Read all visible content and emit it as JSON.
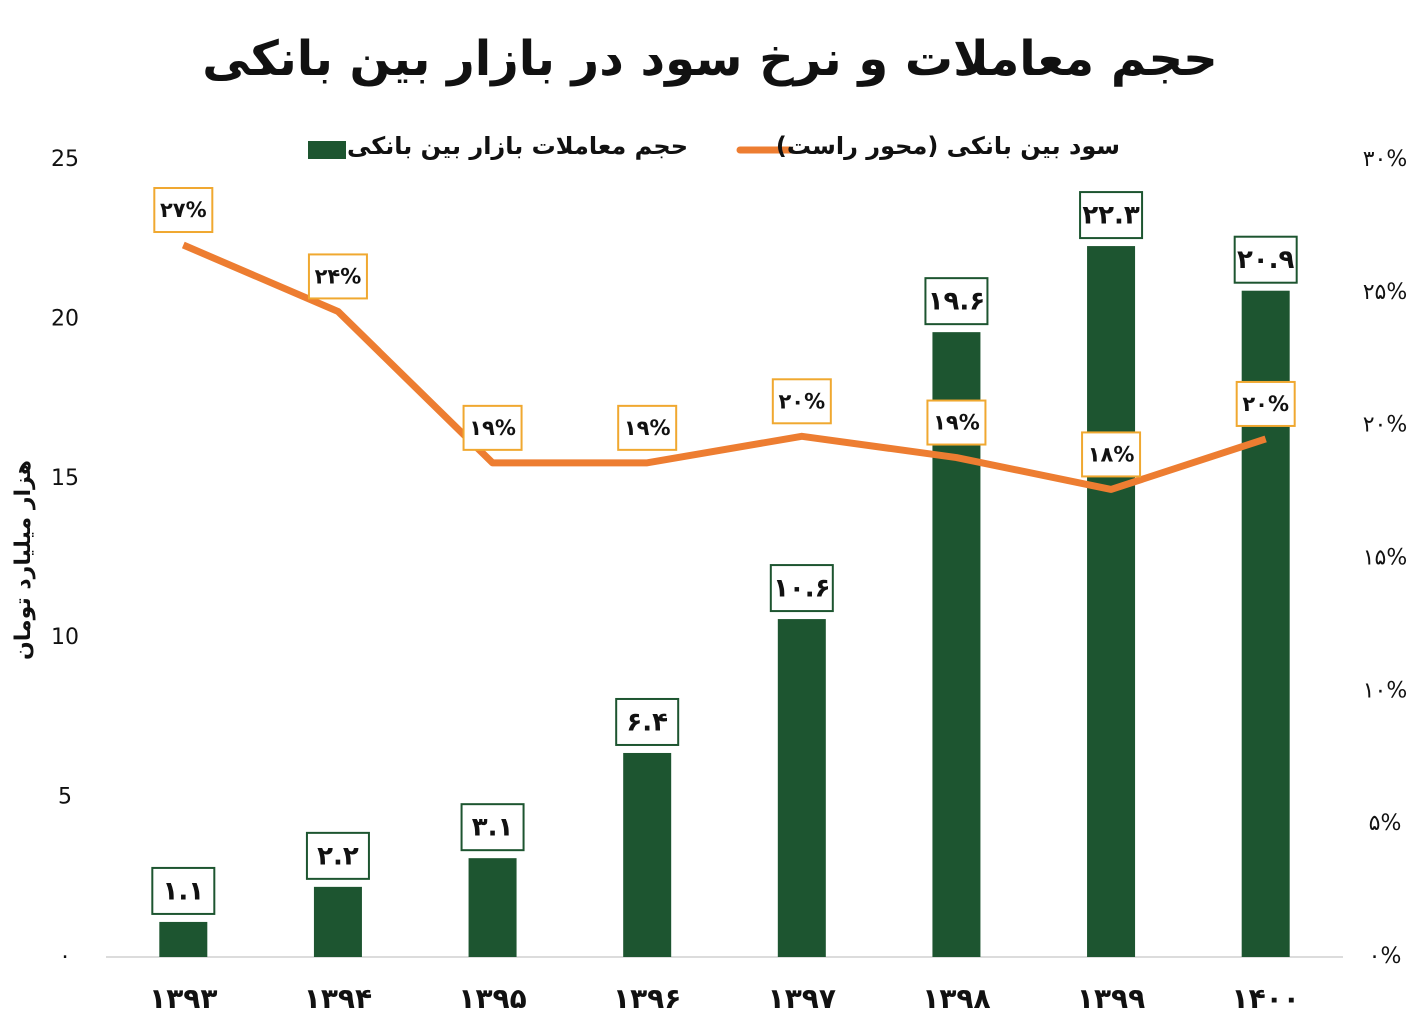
{
  "chart_data": {
    "type": "bar",
    "title": "حجم معاملات و نرخ سود در بازار بین بانکی",
    "y_label": "هزار میلیارد تومان",
    "categories": [
      "۱۳۹۳",
      "۱۳۹۴",
      "۱۳۹۵",
      "۱۳۹۶",
      "۱۳۹۷",
      "۱۳۹۸",
      "۱۳۹۹",
      "۱۴۰۰"
    ],
    "series": [
      {
        "name": "حجم معاملات بازار بین بانکی",
        "type": "bar",
        "color": "#1d5530",
        "values": [
          1.1,
          2.2,
          3.1,
          6.4,
          10.6,
          19.6,
          22.3,
          20.9
        ],
        "value_labels": [
          "۱.۱",
          "۲.۲",
          "۳.۱",
          "۶.۴",
          "۱۰.۶",
          "۱۹.۶",
          "۲۲.۳",
          "۲۰.۹"
        ]
      },
      {
        "name": "سود بین بانکی (محور راست)",
        "type": "line",
        "axis": "y2",
        "color": "#ed7d31",
        "values": [
          26.8,
          24.3,
          18.6,
          18.6,
          19.6,
          18.8,
          17.6,
          19.5
        ],
        "value_labels": [
          "۲۷%",
          "۲۴%",
          "۱۹%",
          "۱۹%",
          "۲۰%",
          "۱۹%",
          "۱۸%",
          "۲۰%"
        ]
      }
    ],
    "ylim": [
      0,
      25
    ],
    "yticks": [
      {
        "value": 0,
        "label": "۰"
      },
      5,
      10,
      15,
      20,
      25
    ],
    "y2lim": [
      0,
      30
    ],
    "y2ticks": [
      {
        "value": 0,
        "label": "۰%"
      },
      {
        "value": 5,
        "label": "۵%"
      },
      {
        "value": 10,
        "label": "۱۰%"
      },
      {
        "value": 15,
        "label": "۱۵%"
      },
      {
        "value": 20,
        "label": "۲۰%"
      },
      {
        "value": 25,
        "label": "۲۵%"
      },
      {
        "value": 30,
        "label": "۳۰%"
      }
    ],
    "legend": "top"
  }
}
